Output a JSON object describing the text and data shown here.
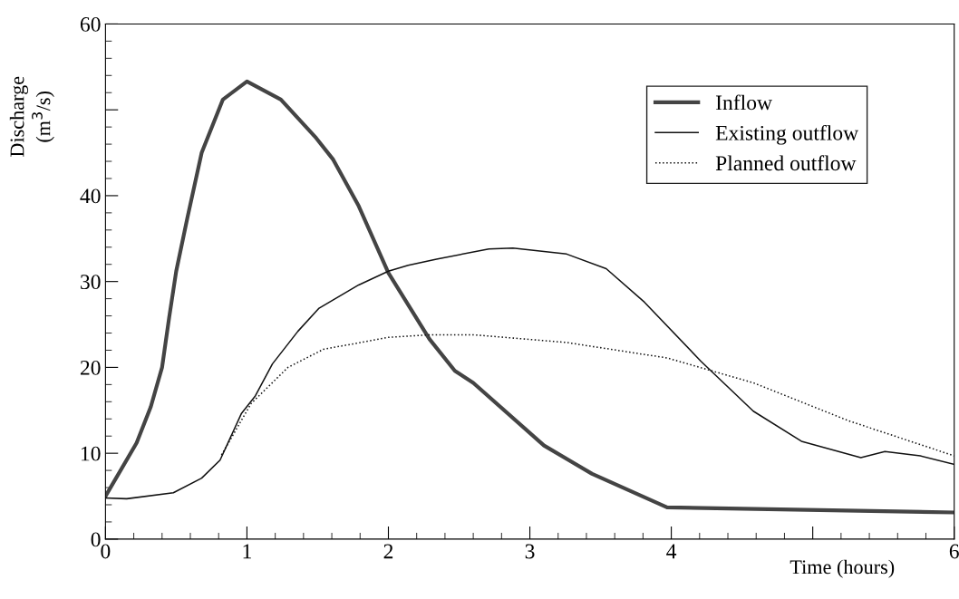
{
  "chart_data": {
    "type": "line",
    "xlabel": "Time (hours)",
    "ylabel": "Discharge\n(m$^{3}$/s)",
    "xlim": [
      0,
      6
    ],
    "ylim": [
      0,
      60
    ],
    "xticks": [
      0,
      1,
      2,
      3,
      4,
      {
        "value": 5,
        "label": null
      },
      6
    ],
    "yticks": [
      0,
      10,
      20,
      30,
      40,
      {
        "value": 50,
        "label": null
      },
      60
    ],
    "legend": "top right",
    "grid": false,
    "series": [
      {
        "name": "Inflow",
        "color": "#444444",
        "line_style": "solid",
        "x": [
          0,
          0.22,
          0.32,
          0.4,
          0.45,
          0.5,
          0.58,
          0.68,
          0.83,
          1.0,
          1.24,
          1.49,
          1.61,
          1.79,
          2.0,
          2.29,
          2.47,
          2.6,
          3.1,
          3.44,
          3.97,
          6.0
        ],
        "values": [
          5.0,
          11.2,
          15.4,
          20,
          25.8,
          31.2,
          37.5,
          45,
          51.2,
          53.3,
          51.2,
          46.7,
          44.2,
          38.8,
          31,
          23.3,
          19.6,
          18.2,
          10.9,
          7.6,
          3.7,
          3.1
        ]
      },
      {
        "name": "Existing outflow",
        "color": "#111111",
        "line_style": "solid",
        "x": [
          0,
          0.15,
          0.48,
          0.68,
          0.81,
          0.96,
          1.06,
          1.18,
          1.36,
          1.51,
          1.79,
          2.0,
          2.14,
          2.34,
          2.71,
          2.88,
          3.26,
          3.54,
          3.81,
          4.21,
          4.58,
          4.92,
          5.34,
          5.51,
          5.76,
          6.0
        ],
        "values": [
          4.8,
          4.7,
          5.4,
          7.1,
          9.2,
          14.6,
          16.7,
          20.4,
          24.2,
          26.9,
          29.6,
          31.2,
          31.9,
          32.6,
          33.8,
          33.9,
          33.2,
          31.5,
          27.6,
          20.7,
          14.9,
          11.4,
          9.5,
          10.2,
          9.7,
          8.7
        ]
      },
      {
        "name": "Planned outflow",
        "color": "#111111",
        "line_style": "dotted",
        "x": [
          0.82,
          1.03,
          1.29,
          1.54,
          2.0,
          2.3,
          2.6,
          3.26,
          3.97,
          4.58,
          5.25,
          6.0
        ],
        "values": [
          9.8,
          15.8,
          20,
          22.1,
          23.5,
          23.8,
          23.8,
          22.9,
          21.1,
          18.2,
          13.8,
          9.7
        ]
      }
    ]
  }
}
